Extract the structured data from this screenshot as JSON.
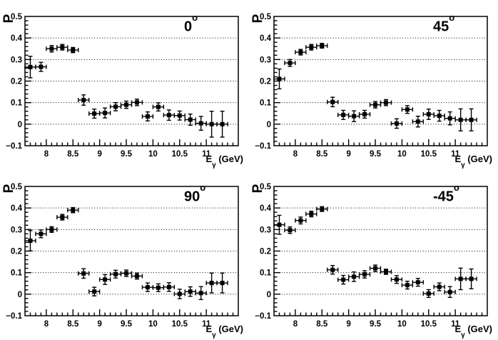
{
  "page": {
    "background": "#ffffff",
    "foreground": "#000000"
  },
  "chart_data": [
    {
      "type": "scatter",
      "title_main": "0",
      "title_sup": "o",
      "ylabel": "P",
      "xlabel_main": "E",
      "xlabel_sub": "γ",
      "xlabel_unit": " (GeV)",
      "xlim": [
        7.6,
        11.6
      ],
      "ylim": [
        -0.1,
        0.5
      ],
      "xticks": [
        8,
        8.5,
        9,
        9.5,
        10,
        10.5,
        11
      ],
      "yticks": [
        -0.1,
        0,
        0.1,
        0.2,
        0.3,
        0.4,
        0.5
      ],
      "grid_y": [
        0,
        0.1,
        0.2,
        0.3,
        0.4
      ],
      "marker": "filled-square",
      "color": "#000000",
      "xerr": 0.1,
      "x": [
        7.7,
        7.9,
        8.1,
        8.3,
        8.5,
        8.7,
        8.9,
        9.1,
        9.3,
        9.5,
        9.7,
        9.9,
        10.1,
        10.3,
        10.5,
        10.7,
        10.9,
        11.1,
        11.3
      ],
      "y": [
        0.265,
        0.266,
        0.35,
        0.357,
        0.344,
        0.112,
        0.049,
        0.052,
        0.081,
        0.09,
        0.101,
        0.036,
        0.08,
        0.042,
        0.04,
        0.021,
        0.004,
        0.0,
        0.0
      ],
      "yerr": [
        0.05,
        0.021,
        0.015,
        0.013,
        0.012,
        0.024,
        0.021,
        0.023,
        0.019,
        0.017,
        0.015,
        0.021,
        0.019,
        0.024,
        0.021,
        0.026,
        0.032,
        0.06,
        0.06
      ]
    },
    {
      "type": "scatter",
      "title_main": "45",
      "title_sup": "o",
      "ylabel": "P",
      "xlabel_main": "E",
      "xlabel_sub": "γ",
      "xlabel_unit": " (GeV)",
      "xlim": [
        7.6,
        11.6
      ],
      "ylim": [
        -0.1,
        0.5
      ],
      "xticks": [
        8,
        8.5,
        9,
        9.5,
        10,
        10.5,
        11
      ],
      "yticks": [
        -0.1,
        0,
        0.1,
        0.2,
        0.3,
        0.4,
        0.5
      ],
      "grid_y": [
        0,
        0.1,
        0.2,
        0.3,
        0.4
      ],
      "marker": "filled-square",
      "color": "#000000",
      "xerr": 0.1,
      "x": [
        7.7,
        7.9,
        8.1,
        8.3,
        8.5,
        8.7,
        8.9,
        9.1,
        9.3,
        9.5,
        9.7,
        9.9,
        10.1,
        10.3,
        10.5,
        10.7,
        10.9,
        11.1,
        11.3
      ],
      "y": [
        0.21,
        0.284,
        0.334,
        0.357,
        0.364,
        0.103,
        0.043,
        0.037,
        0.046,
        0.09,
        0.1,
        0.003,
        0.068,
        0.012,
        0.046,
        0.039,
        0.027,
        0.02,
        0.02
      ],
      "yerr": [
        0.046,
        0.016,
        0.013,
        0.013,
        0.011,
        0.022,
        0.021,
        0.025,
        0.018,
        0.015,
        0.014,
        0.022,
        0.018,
        0.025,
        0.024,
        0.025,
        0.03,
        0.051,
        0.051
      ]
    },
    {
      "type": "scatter",
      "title_main": "90",
      "title_sup": "o",
      "ylabel": "P",
      "xlabel_main": "E",
      "xlabel_sub": "γ",
      "xlabel_unit": " (GeV)",
      "xlim": [
        7.6,
        11.6
      ],
      "ylim": [
        -0.1,
        0.5
      ],
      "xticks": [
        8,
        8.5,
        9,
        9.5,
        10,
        10.5,
        11
      ],
      "yticks": [
        -0.1,
        0,
        0.1,
        0.2,
        0.3,
        0.4,
        0.5
      ],
      "grid_y": [
        0,
        0.1,
        0.2,
        0.3,
        0.4
      ],
      "marker": "filled-square",
      "color": "#000000",
      "xerr": 0.1,
      "x": [
        7.7,
        7.9,
        8.1,
        8.3,
        8.5,
        8.7,
        8.9,
        9.1,
        9.3,
        9.5,
        9.7,
        9.9,
        10.1,
        10.3,
        10.5,
        10.7,
        10.9,
        11.1,
        11.3
      ],
      "y": [
        0.248,
        0.28,
        0.3,
        0.357,
        0.39,
        0.096,
        0.012,
        0.068,
        0.093,
        0.097,
        0.084,
        0.032,
        0.03,
        0.033,
        0.001,
        0.012,
        0.005,
        0.052,
        0.052
      ],
      "yerr": [
        0.047,
        0.018,
        0.013,
        0.013,
        0.012,
        0.022,
        0.02,
        0.023,
        0.018,
        0.015,
        0.014,
        0.02,
        0.018,
        0.02,
        0.022,
        0.022,
        0.03,
        0.046,
        0.046
      ]
    },
    {
      "type": "scatter",
      "title_main": "-45",
      "title_sup": "o",
      "ylabel": "P",
      "xlabel_main": "E",
      "xlabel_sub": "γ",
      "xlabel_unit": " (GeV)",
      "xlim": [
        7.6,
        11.6
      ],
      "ylim": [
        -0.1,
        0.5
      ],
      "xticks": [
        8,
        8.5,
        9,
        9.5,
        10,
        10.5,
        11
      ],
      "yticks": [
        -0.1,
        0,
        0.1,
        0.2,
        0.3,
        0.4,
        0.5
      ],
      "grid_y": [
        0,
        0.1,
        0.2,
        0.3,
        0.4
      ],
      "marker": "filled-square",
      "color": "#000000",
      "xerr": 0.1,
      "x": [
        7.7,
        7.9,
        8.1,
        8.3,
        8.5,
        8.7,
        8.9,
        9.1,
        9.3,
        9.5,
        9.7,
        9.9,
        10.1,
        10.3,
        10.5,
        10.7,
        10.9,
        11.1,
        11.3
      ],
      "y": [
        0.322,
        0.297,
        0.342,
        0.372,
        0.395,
        0.113,
        0.067,
        0.081,
        0.092,
        0.12,
        0.104,
        0.068,
        0.042,
        0.055,
        0.003,
        0.034,
        0.01,
        0.071,
        0.071
      ],
      "yerr": [
        0.044,
        0.015,
        0.016,
        0.013,
        0.011,
        0.02,
        0.02,
        0.022,
        0.017,
        0.015,
        0.012,
        0.018,
        0.018,
        0.018,
        0.018,
        0.018,
        0.025,
        0.05,
        0.046
      ]
    }
  ]
}
